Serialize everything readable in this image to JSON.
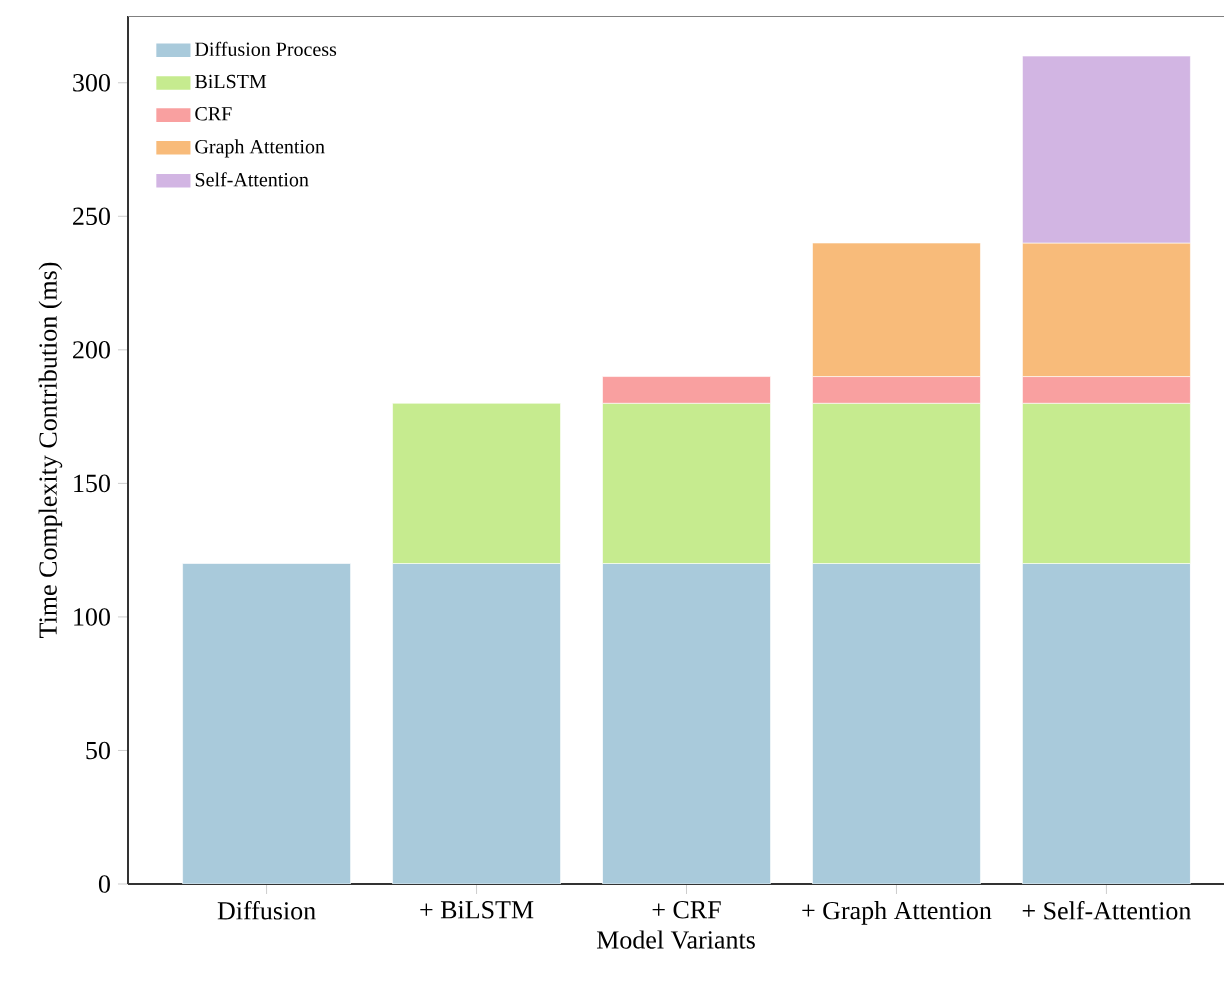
{
  "chart_data": {
    "type": "bar",
    "stacked": true,
    "xlabel": "Model Variants",
    "ylabel": "Time Complexity Contribution (ms)",
    "categories": [
      "Diffusion",
      "+ BiLSTM",
      "+ CRF",
      "+ Graph Attention",
      "+ Self-Attention"
    ],
    "series": [
      {
        "name": "Diffusion Process",
        "color": "#a9cadb",
        "values": [
          120,
          120,
          120,
          120,
          120
        ]
      },
      {
        "name": "BiLSTM",
        "color": "#c6eb8f",
        "values": [
          null,
          60,
          60,
          60,
          60
        ]
      },
      {
        "name": "CRF",
        "color": "#f9a0a0",
        "values": [
          null,
          null,
          10,
          10,
          10
        ]
      },
      {
        "name": "Graph Attention",
        "color": "#f8bb7a",
        "values": [
          null,
          null,
          null,
          50,
          50
        ]
      },
      {
        "name": "Self-Attention",
        "color": "#d2b5e3",
        "values": [
          null,
          null,
          null,
          null,
          70
        ]
      }
    ],
    "ylim": [
      0,
      325
    ],
    "yticks": [
      0,
      50,
      100,
      150,
      200,
      250,
      300
    ],
    "grid": false,
    "legend": "top left"
  }
}
